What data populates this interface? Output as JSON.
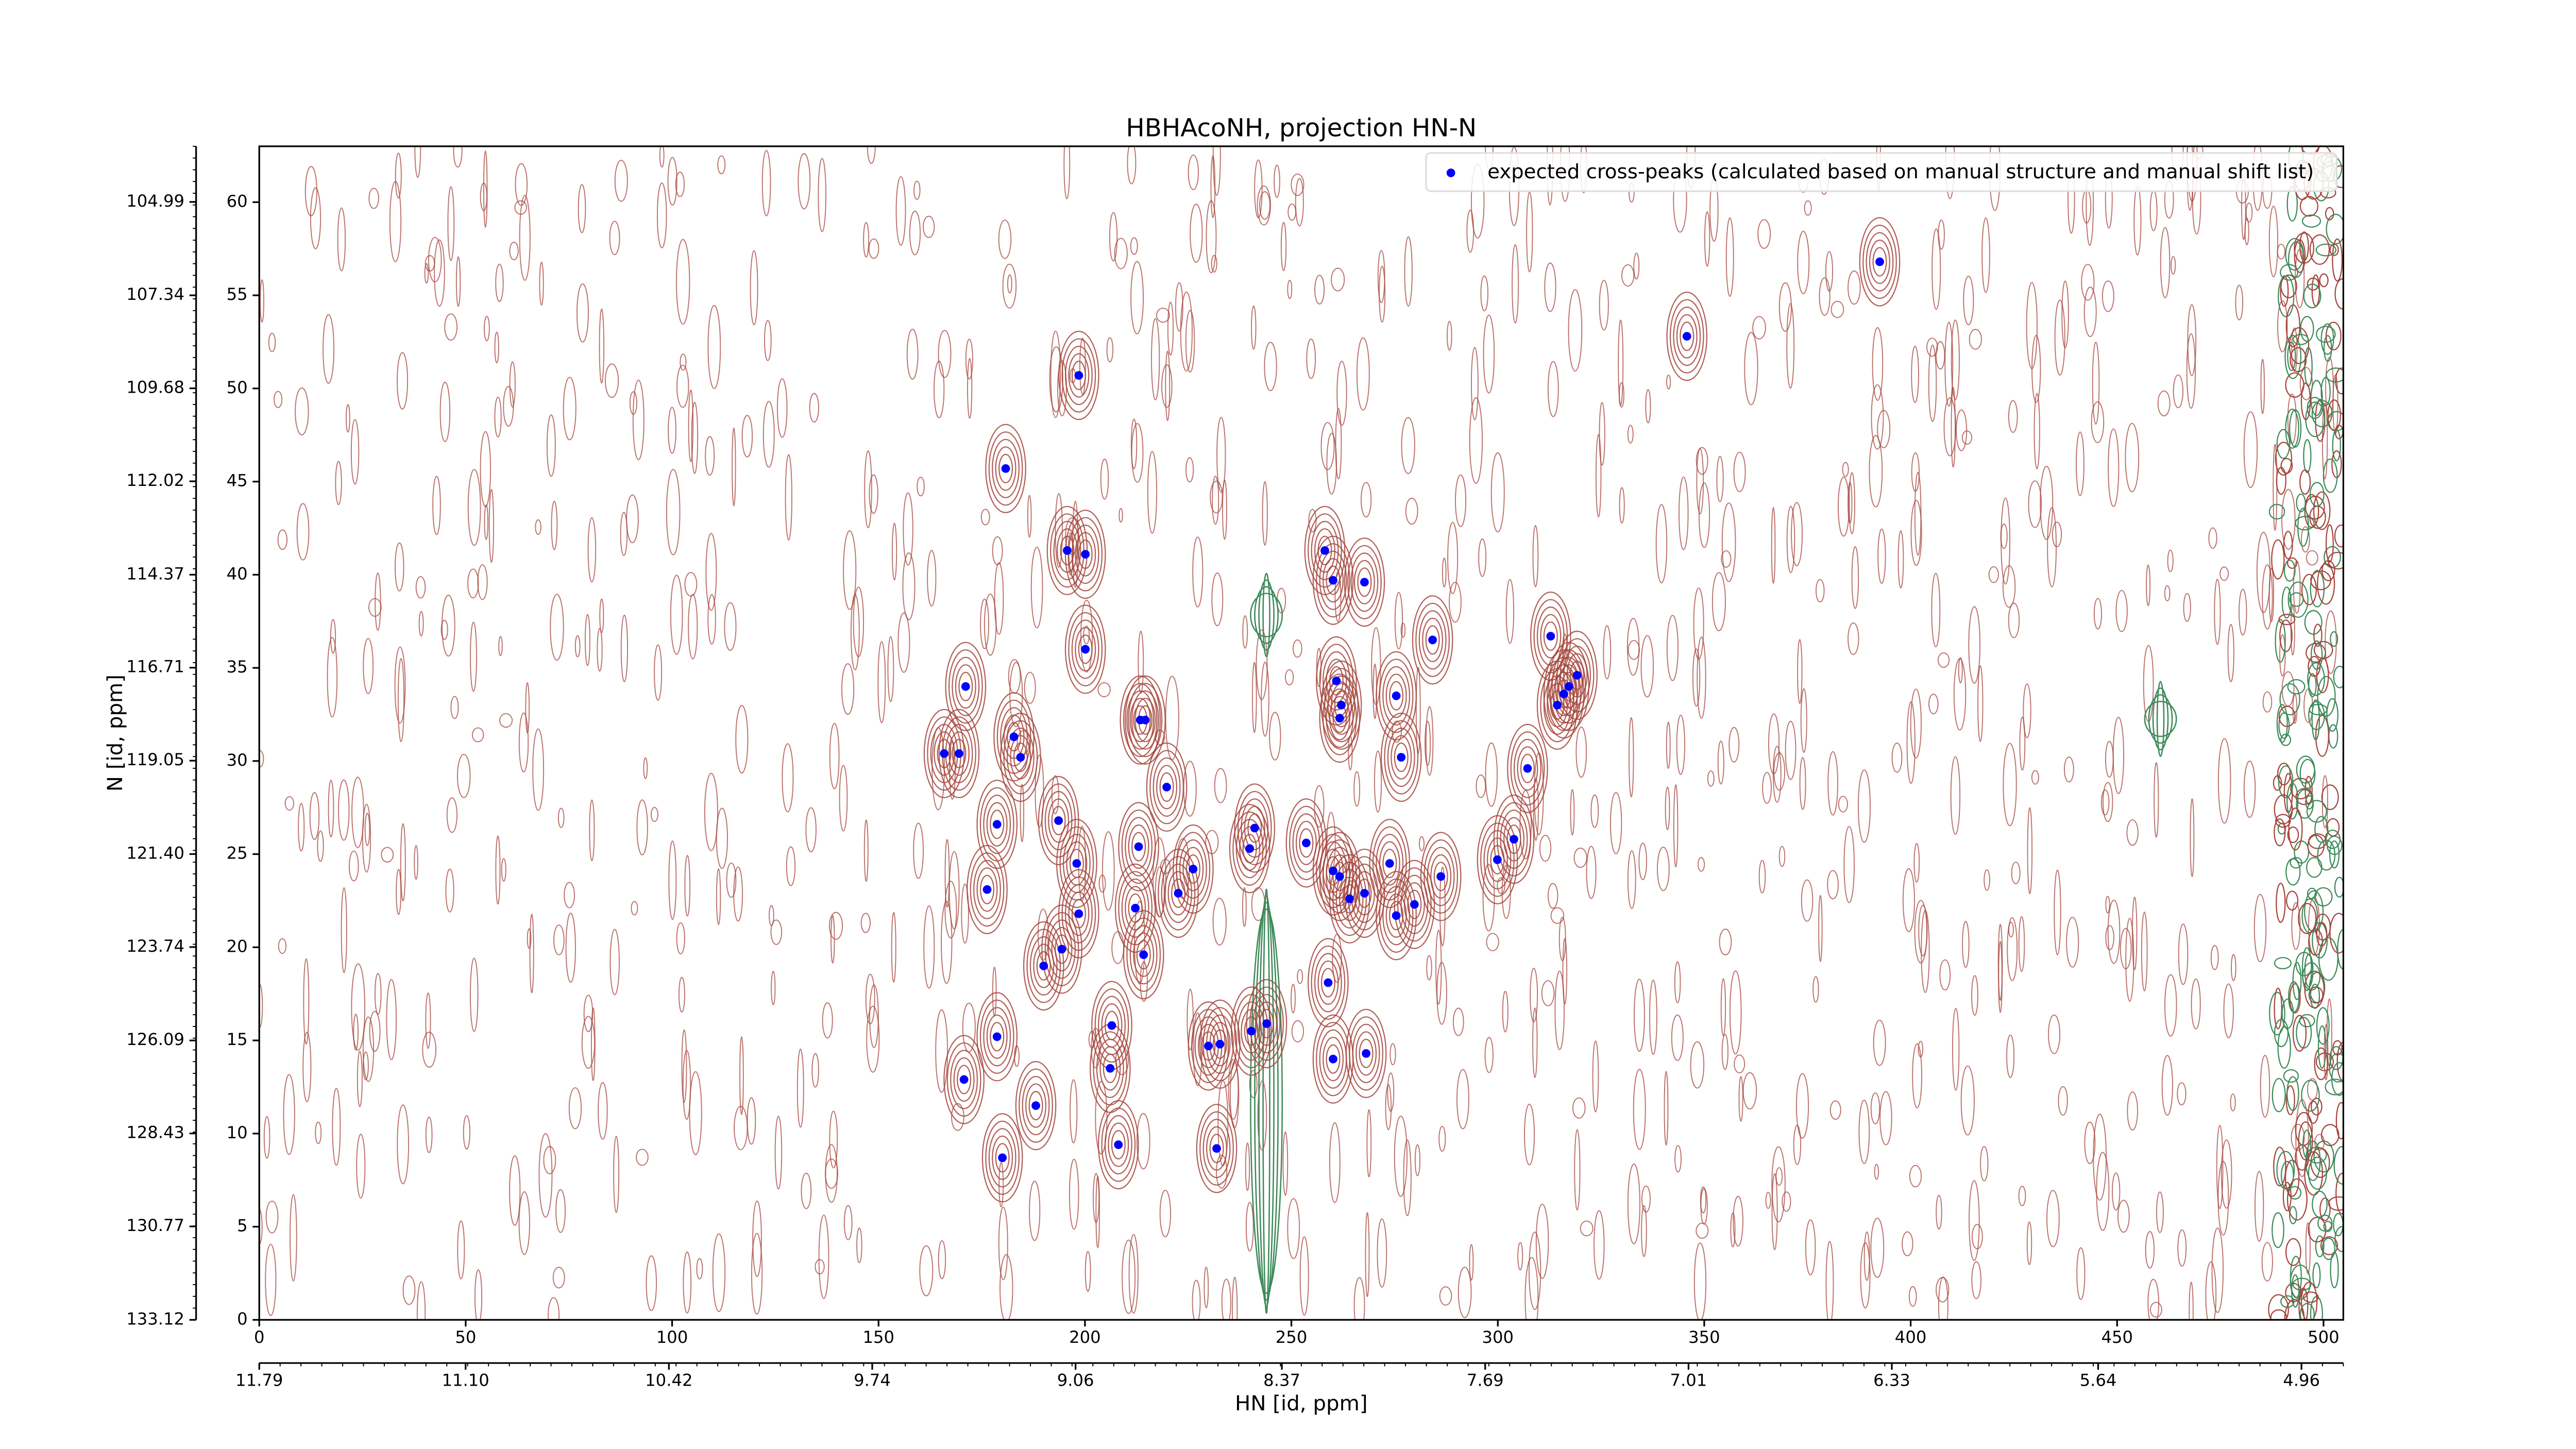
{
  "chart_data": {
    "type": "scatter",
    "title": "HBHAcoNH, projection HN-N",
    "x_label": "HN [id, ppm]",
    "y_label": "N [id, ppm]",
    "xlim": [
      0,
      504.8
    ],
    "ylim": [
      0,
      63
    ],
    "xticks": [
      0,
      50,
      100,
      150,
      200,
      250,
      300,
      350,
      400,
      450,
      500
    ],
    "yticks": [
      0,
      5,
      10,
      15,
      20,
      25,
      30,
      35,
      40,
      45,
      50,
      55,
      60
    ],
    "x2lim": [
      11.79,
      4.82
    ],
    "x2ticks": [
      11.79,
      {
        "value": 11.1,
        "label": "11.10"
      },
      10.42,
      9.74,
      9.06,
      8.37,
      7.69,
      7.01,
      6.33,
      5.64,
      4.96
    ],
    "y2lim": [
      133.12,
      103.59
    ],
    "y2ticks": [
      {
        "value": 133.12,
        "label": "133.12"
      },
      130.77,
      128.43,
      126.09,
      123.74,
      {
        "value": 121.4,
        "label": "121.40"
      },
      119.05,
      116.71,
      114.37,
      112.02,
      109.68,
      107.34,
      104.99
    ],
    "legend": "upper right",
    "series": [
      {
        "name": "expected cross-peaks (calculated based on manual structure and manual shift list)",
        "color": "#0000ff",
        "x": [
          392.5,
          345.8,
          198.5,
          180.8,
          195.7,
          200.1,
          258.1,
          260.1,
          267.7,
          284.2,
          200.1,
          312.8,
          319.2,
          317.2,
          316.0,
          314.4,
          171.1,
          260.9,
          262.1,
          261.7,
          275.4,
          213.4,
          214.6,
          182.8,
          165.9,
          169.5,
          184.4,
          276.6,
          307.2,
          219.8,
          178.7,
          193.6,
          241.1,
          253.6,
          213.0,
          239.9,
          303.9,
          299.9,
          198.0,
          273.8,
          226.2,
          260.1,
          261.7,
          286.2,
          264.1,
          267.7,
          222.6,
          176.3,
          279.8,
          212.2,
          275.4,
          198.5,
          214.2,
          194.4,
          190.0,
          258.9,
          206.5,
          178.7,
          240.3,
          244.0,
          229.9,
          232.7,
          260.1,
          268.1,
          206.1,
          170.7,
          188.1,
          208.1,
          231.9,
          180.0
        ],
        "values": [
          56.8,
          52.8,
          50.7,
          45.7,
          41.3,
          41.1,
          41.3,
          39.7,
          39.6,
          36.5,
          36.0,
          36.7,
          34.6,
          34.0,
          33.6,
          33.0,
          34.0,
          34.3,
          33.0,
          32.3,
          33.5,
          32.2,
          32.2,
          31.3,
          30.4,
          30.4,
          30.2,
          30.2,
          29.6,
          28.6,
          26.6,
          26.8,
          26.4,
          25.6,
          25.4,
          25.3,
          25.8,
          24.7,
          24.5,
          24.5,
          24.2,
          24.1,
          23.8,
          23.8,
          22.6,
          22.9,
          22.9,
          23.1,
          22.3,
          22.1,
          21.7,
          21.8,
          19.6,
          19.9,
          19.0,
          18.1,
          15.8,
          15.2,
          15.5,
          15.9,
          14.7,
          14.8,
          14.0,
          14.3,
          13.5,
          12.9,
          11.5,
          9.4,
          9.2,
          8.7
        ]
      }
    ]
  }
}
